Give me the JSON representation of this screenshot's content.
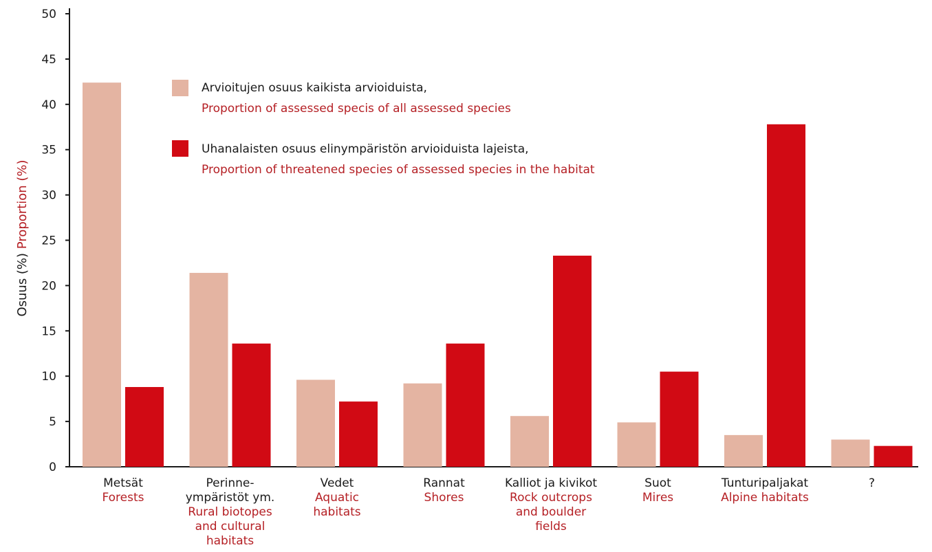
{
  "chart_data": {
    "type": "bar",
    "ylabel": {
      "fi": "Osuus (%)",
      "en": "Proportion (%)"
    },
    "ylim": [
      0,
      50
    ],
    "yticks": [
      0,
      5,
      10,
      15,
      20,
      25,
      30,
      35,
      40,
      45,
      50
    ],
    "grid": false,
    "legend_placement": "top-center",
    "categories": [
      {
        "fi": [
          "Metsät"
        ],
        "en": [
          "Forests"
        ]
      },
      {
        "fi": [
          "Perinne-",
          "ympäristöt ym."
        ],
        "en": [
          "Rural biotopes",
          "and cultural",
          "habitats"
        ]
      },
      {
        "fi": [
          "Vedet"
        ],
        "en": [
          "Aquatic",
          "habitats"
        ]
      },
      {
        "fi": [
          "Rannat"
        ],
        "en": [
          "Shores"
        ]
      },
      {
        "fi": [
          "Kalliot ja kivikot"
        ],
        "en": [
          "Rock outcrops",
          "and boulder",
          "fields"
        ]
      },
      {
        "fi": [
          "Suot"
        ],
        "en": [
          "Mires"
        ]
      },
      {
        "fi": [
          "Tunturipaljakat"
        ],
        "en": [
          "Alpine habitats"
        ]
      },
      {
        "fi": [
          "?"
        ],
        "en": []
      }
    ],
    "series": [
      {
        "name_fi": "Arvioitujen osuus kaikista arvioiduista,",
        "name_en": "Proportion of assessed specis of all assessed species",
        "color": "#e4b4a2",
        "values": [
          42.4,
          21.4,
          9.6,
          9.2,
          5.6,
          4.9,
          3.5,
          3.0
        ]
      },
      {
        "name_fi": "Uhanalaisten osuus elinympäristön arvioiduista lajeista,",
        "name_en": "Proportion of threatened species of assessed species in the habitat",
        "color": "#d10a14",
        "values": [
          8.8,
          13.6,
          7.2,
          13.6,
          23.3,
          10.5,
          37.8,
          2.3
        ]
      }
    ]
  },
  "colors": {
    "text": "#1a1a1a",
    "english_text": "#b52025",
    "axis": "#1a1a1a"
  }
}
